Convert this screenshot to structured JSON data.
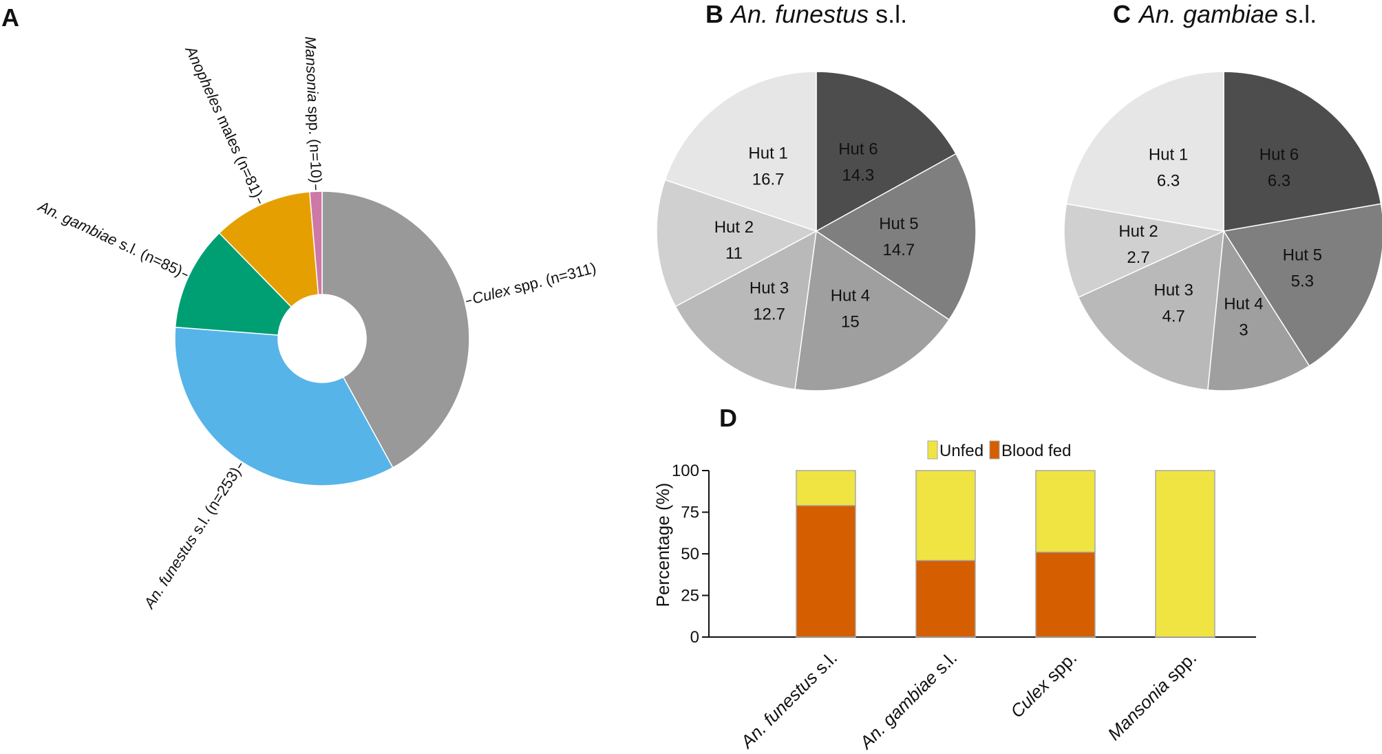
{
  "chart_data": [
    {
      "panel": "A",
      "type": "pie",
      "donut": true,
      "title": "",
      "slices": [
        {
          "name": "Culex spp.",
          "n": 311,
          "display_pre": "",
          "display_em": "Culex",
          "display_post": " spp. (n=311)",
          "color": "#999999"
        },
        {
          "name": "An. funestus s.l.",
          "n": 253,
          "display_pre": "",
          "display_em": "An. funestus",
          "display_post": " s.l. (n=253)",
          "color": "#56b4e9"
        },
        {
          "name": "An. gambiae s.l.",
          "n": 85,
          "display_pre": "",
          "display_em": "An. gambiae",
          "display_post": " s.l. (n=85)",
          "color": "#009e73"
        },
        {
          "name": "Anopheles males",
          "n": 81,
          "display_pre": "",
          "display_em": "Anopheles",
          "display_post": " males (n=81)",
          "color": "#e69f00"
        },
        {
          "name": "Mansonia spp.",
          "n": 10,
          "display_pre": "",
          "display_em": "Mansonia",
          "display_post": " spp. (n=10)",
          "color": "#cc79a7"
        }
      ]
    },
    {
      "panel": "B",
      "type": "pie",
      "title_em": "An. funestus",
      "title_post": " s.l.",
      "slices": [
        {
          "label": "Hut 6",
          "value": 14.3,
          "value_text": "14.3",
          "color": "#4d4d4d"
        },
        {
          "label": "Hut 5",
          "value": 14.7,
          "value_text": "14.7",
          "color": "#7f7f7f"
        },
        {
          "label": "Hut 4",
          "value": 15,
          "value_text": "15",
          "color": "#9f9f9f"
        },
        {
          "label": "Hut 3",
          "value": 12.7,
          "value_text": "12.7",
          "color": "#b9b9b9"
        },
        {
          "label": "Hut 2",
          "value": 11,
          "value_text": "11",
          "color": "#d0d0d0"
        },
        {
          "label": "Hut 1",
          "value": 16.7,
          "value_text": "16.7",
          "color": "#e6e6e6"
        }
      ]
    },
    {
      "panel": "C",
      "type": "pie",
      "title_em": "An. gambiae",
      "title_post": " s.l.",
      "slices": [
        {
          "label": "Hut 6",
          "value": 6.3,
          "value_text": "6.3",
          "color": "#4d4d4d"
        },
        {
          "label": "Hut 5",
          "value": 5.3,
          "value_text": "5.3",
          "color": "#7f7f7f"
        },
        {
          "label": "Hut 4",
          "value": 3,
          "value_text": "3",
          "color": "#9f9f9f"
        },
        {
          "label": "Hut 3",
          "value": 4.7,
          "value_text": "4.7",
          "color": "#b9b9b9"
        },
        {
          "label": "Hut 2",
          "value": 2.7,
          "value_text": "2.7",
          "color": "#d0d0d0"
        },
        {
          "label": "Hut 1",
          "value": 6.3,
          "value_text": "6.3",
          "color": "#e6e6e6"
        }
      ]
    },
    {
      "panel": "D",
      "type": "bar",
      "stacked": true,
      "ylabel": "Percentage (%)",
      "xlabel": "",
      "ylim": [
        0,
        100
      ],
      "yticks": [
        0,
        25,
        50,
        75,
        100
      ],
      "categories": [
        {
          "em": "An. funestus",
          "post": " s.l."
        },
        {
          "em": "An. gambiae",
          "post": " s.l."
        },
        {
          "em": "Culex",
          "post": " spp."
        },
        {
          "em": "Mansonia",
          "post": " spp."
        }
      ],
      "series": [
        {
          "name": "Blood fed",
          "color": "#d55e00",
          "values": [
            79,
            46,
            51,
            0
          ]
        },
        {
          "name": "Unfed",
          "color": "#f0e442",
          "values": [
            21,
            54,
            49,
            100
          ]
        }
      ],
      "legend": [
        {
          "name": "Unfed",
          "color": "#f0e442"
        },
        {
          "name": "Blood fed",
          "color": "#d55e00"
        }
      ],
      "legend_position": "top"
    }
  ],
  "panel_labels": {
    "a": "A",
    "b": "B",
    "c": "C",
    "d": "D"
  }
}
